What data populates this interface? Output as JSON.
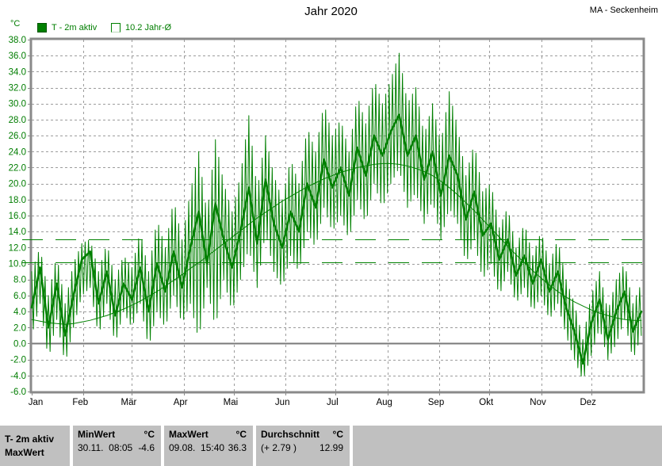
{
  "header": {
    "title": "Jahr 2020",
    "station": "MA - Seckenheim"
  },
  "axis": {
    "unit": "°C",
    "months": [
      "Jan",
      "Feb",
      "Mär",
      "Apr",
      "Mai",
      "Jun",
      "Jul",
      "Aug",
      "Sep",
      "Okt",
      "Nov",
      "Dez"
    ],
    "month_day_offsets": [
      0,
      31,
      60,
      91,
      121,
      152,
      182,
      213,
      244,
      274,
      305,
      335
    ],
    "days_total": 366
  },
  "legend": [
    {
      "label": "T - 2m aktiv",
      "symbol": "filled-square"
    },
    {
      "label": "10.2 Jahr-Ø",
      "symbol": "outline-square"
    }
  ],
  "colors": {
    "series_green": "#008000",
    "axis_text_green": "#007d00",
    "grid_gray": "#9c9c9c",
    "frame_gray": "#8a8a8a",
    "zero_line_gray": "#7a7a7a",
    "statsbar_gray": "#c0c0c0"
  },
  "chart_data": {
    "type": "line",
    "title": "Jahr 2020",
    "ylabel": "°C",
    "ylim": [
      -6,
      38
    ],
    "y_tick_step": 2,
    "grid": "dashed",
    "legend_position": "top-left",
    "x_unit": "day_of_year_2020",
    "sample_step_days": 5,
    "series": [
      {
        "name": "T - 2m aktiv (Mittel, dicke Linie)",
        "style": "thick",
        "values": [
          4.5,
          9.5,
          2,
          7.5,
          1,
          6,
          10.5,
          11.5,
          5,
          9,
          3.5,
          7.5,
          5.5,
          9.5,
          4,
          10,
          6.5,
          11.5,
          7,
          12,
          16.5,
          10,
          17.5,
          13,
          9.5,
          14,
          19.5,
          12.5,
          20.5,
          15,
          12,
          16.5,
          14,
          20,
          17,
          23,
          19.5,
          22,
          18.5,
          24.5,
          21,
          26,
          23.5,
          26.5,
          28.6,
          23.5,
          26,
          20.5,
          24,
          18.5,
          23.5,
          21,
          15.5,
          19,
          13.5,
          15,
          10.5,
          13,
          8.5,
          11,
          7.5,
          10.5,
          6.5,
          9,
          4.5,
          1.5,
          -2.5,
          2.5,
          5.5,
          0.5,
          4,
          6.5,
          1.5,
          4
        ]
      },
      {
        "name": "T - 2m aktiv (Tagesmaximum-Hüllkurve)",
        "style": "envelope-max",
        "values": [
          9,
          12,
          6,
          11,
          5,
          10,
          12.5,
          13,
          9,
          12.5,
          8,
          11,
          9.5,
          14,
          9,
          15.5,
          12,
          18,
          13,
          19,
          24,
          16,
          25.5,
          20,
          16.5,
          21,
          28.5,
          19,
          26,
          21,
          18,
          23,
          20,
          27,
          24,
          30,
          26,
          28,
          24,
          31,
          27.5,
          33,
          30,
          33,
          36.3,
          30,
          32,
          26,
          30,
          25,
          31.5,
          27,
          21,
          25,
          19,
          20,
          14.5,
          17,
          12,
          15,
          11,
          14,
          10,
          13,
          8,
          5,
          0.5,
          6,
          9,
          4,
          8,
          10,
          5,
          7.5
        ]
      },
      {
        "name": "T - 2m aktiv (Tagesminimum-Hüllkurve)",
        "style": "envelope-min",
        "values": [
          1,
          5,
          -2,
          3,
          -2.5,
          2,
          6,
          7,
          1,
          5,
          0,
          4,
          2,
          5,
          -0.5,
          4,
          2,
          6,
          2.5,
          5,
          0.5,
          7,
          2,
          8,
          4,
          8,
          12,
          7,
          14,
          9,
          7,
          11,
          9,
          14,
          12,
          17,
          14,
          16,
          13,
          18,
          15,
          20,
          17,
          20,
          22,
          17,
          19,
          15,
          18,
          13,
          17,
          15,
          10,
          13,
          8,
          10,
          6,
          9,
          5,
          7,
          4,
          6,
          3,
          5,
          1,
          -2,
          -4.6,
          -1.5,
          2,
          -2,
          0,
          3,
          -2,
          1
        ]
      },
      {
        "name": "10.2 Jahr-Ø (langjähriges Tagesmittel)",
        "style": "thin-smooth",
        "values": [
          3,
          2.8,
          2.6,
          2.5,
          2.4,
          2.5,
          2.7,
          2.9,
          3.2,
          3.5,
          3.9,
          4.3,
          4.8,
          5.3,
          5.9,
          6.5,
          7.2,
          7.9,
          8.6,
          9.4,
          10.1,
          10.9,
          11.7,
          12.5,
          13.3,
          14.1,
          14.9,
          15.7,
          16.4,
          17.1,
          17.8,
          18.4,
          19,
          19.6,
          20.1,
          20.6,
          21,
          21.4,
          21.7,
          22,
          22.2,
          22.4,
          22.5,
          22.5,
          22.4,
          22.2,
          21.9,
          21.5,
          21,
          20.3,
          19.5,
          18.6,
          17.6,
          16.6,
          15.5,
          14.4,
          13.3,
          12.2,
          11.1,
          10.1,
          9.1,
          8.2,
          7.3,
          6.5,
          5.8,
          5.2,
          4.7,
          4.2,
          3.8,
          3.5,
          3.2,
          3,
          2.9,
          2.9
        ]
      }
    ],
    "reference_lines": [
      {
        "label": "Durchschnitt 2020",
        "value": 12.99,
        "style": "green-long-dash"
      },
      {
        "label": "10.2 Jahr-Ø",
        "value": 10.2,
        "style": "green-long-dash"
      }
    ]
  },
  "stats_bar": {
    "row_label_line1": "T- 2m aktiv",
    "row_label_line2": "MaxWert",
    "cells": [
      {
        "header": "MinWert",
        "unit": "°C",
        "value_left": "30.11.  08:05",
        "value_right": "-4.6"
      },
      {
        "header": "MaxWert",
        "unit": "°C",
        "value_left": "09.08.  15:40",
        "value_right": "36.3"
      },
      {
        "header": "Durchschnitt",
        "unit": "°C",
        "value_left": "(+ 2.79 )",
        "value_right": "12.99"
      }
    ]
  }
}
